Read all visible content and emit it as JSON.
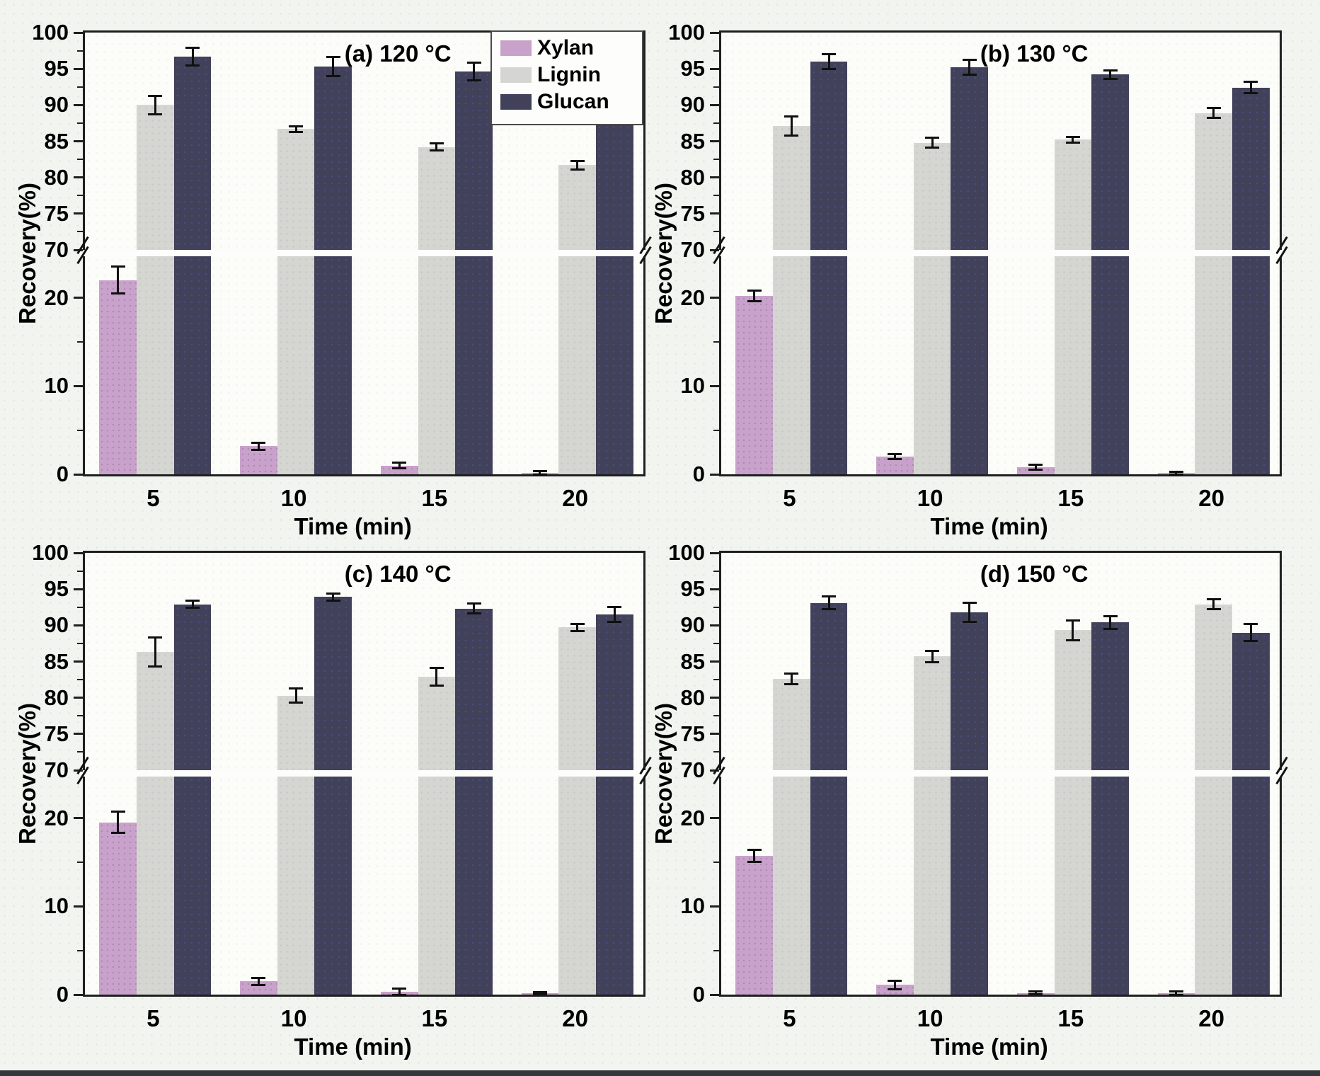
{
  "figure": {
    "y_axis_label": "Recovery(%)",
    "x_axis_label": "Time (min)",
    "y_top_ticks": [
      "100",
      "95",
      "90",
      "85",
      "80",
      "75",
      "70"
    ],
    "y_bottom_ticks": [
      "20",
      "10",
      "0"
    ],
    "x_tick_labels": [
      "5",
      "10",
      "15",
      "20"
    ],
    "legend": [
      {
        "label": "Xylan",
        "color": "#c8a2ca"
      },
      {
        "label": "Lignin",
        "color": "#d5d5d1"
      },
      {
        "label": "Glucan",
        "color": "#41415a"
      }
    ]
  },
  "chart_data": [
    {
      "type": "bar",
      "title": "(a) 120 °C",
      "xlabel": "Time (min)",
      "ylabel": "Recovery(%)",
      "categories": [
        5,
        10,
        15,
        20
      ],
      "ylim": [
        0,
        100
      ],
      "y_axis_break": {
        "lower_max": 24.7,
        "upper_min": 70
      },
      "grid": false,
      "legend_position": "top-right-inside",
      "series": [
        {
          "name": "Xylan",
          "values": [
            22.0,
            3.2,
            1.0,
            0.2
          ],
          "errors": [
            1.5,
            0.4,
            0.3,
            0.2
          ]
        },
        {
          "name": "Lignin",
          "values": [
            90.0,
            86.7,
            84.2,
            81.7
          ],
          "errors": [
            1.3,
            0.4,
            0.5,
            0.6
          ]
        },
        {
          "name": "Glucan",
          "values": [
            96.7,
            95.3,
            94.6,
            94.2
          ],
          "errors": [
            1.2,
            1.3,
            1.2,
            1.2
          ]
        }
      ]
    },
    {
      "type": "bar",
      "title": "(b) 130 °C",
      "xlabel": "Time (min)",
      "ylabel": "Recovery(%)",
      "categories": [
        5,
        10,
        15,
        20
      ],
      "ylim": [
        0,
        100
      ],
      "y_axis_break": {
        "lower_max": 24.7,
        "upper_min": 70
      },
      "grid": false,
      "series": [
        {
          "name": "Xylan",
          "values": [
            20.2,
            2.0,
            0.8,
            0.15
          ],
          "errors": [
            0.6,
            0.3,
            0.3,
            0.15
          ]
        },
        {
          "name": "Lignin",
          "values": [
            87.1,
            84.8,
            85.2,
            88.9
          ],
          "errors": [
            1.3,
            0.7,
            0.4,
            0.7
          ]
        },
        {
          "name": "Glucan",
          "values": [
            96.0,
            95.2,
            94.2,
            92.4
          ],
          "errors": [
            1.0,
            1.0,
            0.6,
            0.8
          ]
        }
      ]
    },
    {
      "type": "bar",
      "title": "(c) 140 °C",
      "xlabel": "Time (min)",
      "ylabel": "Recovery(%)",
      "categories": [
        5,
        10,
        15,
        20
      ],
      "ylim": [
        0,
        100
      ],
      "y_axis_break": {
        "lower_max": 24.7,
        "upper_min": 70
      },
      "grid": false,
      "series": [
        {
          "name": "Xylan",
          "values": [
            19.5,
            1.5,
            0.3,
            0.15
          ],
          "errors": [
            1.2,
            0.4,
            0.4,
            0.1
          ]
        },
        {
          "name": "Lignin",
          "values": [
            86.3,
            80.3,
            82.9,
            89.7
          ],
          "errors": [
            2.0,
            1.0,
            1.2,
            0.5
          ]
        },
        {
          "name": "Glucan",
          "values": [
            92.9,
            93.9,
            92.3,
            91.5
          ],
          "errors": [
            0.5,
            0.5,
            0.7,
            1.0
          ]
        }
      ]
    },
    {
      "type": "bar",
      "title": "(d) 150 °C",
      "xlabel": "Time (min)",
      "ylabel": "Recovery(%)",
      "categories": [
        5,
        10,
        15,
        20
      ],
      "ylim": [
        0,
        100
      ],
      "y_axis_break": {
        "lower_max": 24.7,
        "upper_min": 70
      },
      "grid": false,
      "series": [
        {
          "name": "Xylan",
          "values": [
            15.7,
            1.1,
            0.2,
            0.15
          ],
          "errors": [
            0.7,
            0.5,
            0.15,
            0.25
          ]
        },
        {
          "name": "Lignin",
          "values": [
            82.6,
            85.7,
            89.3,
            92.9
          ],
          "errors": [
            0.7,
            0.8,
            1.4,
            0.7
          ]
        },
        {
          "name": "Glucan",
          "values": [
            93.1,
            91.8,
            90.4,
            89.0
          ],
          "errors": [
            0.9,
            1.3,
            0.9,
            1.2
          ]
        }
      ]
    }
  ]
}
